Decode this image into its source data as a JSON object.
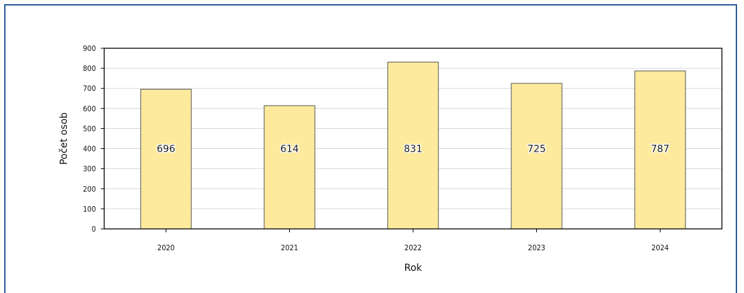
{
  "chart_data": {
    "type": "bar",
    "categories": [
      "2020",
      "2021",
      "2022",
      "2023",
      "2024"
    ],
    "values": [
      696,
      614,
      831,
      725,
      787
    ],
    "title": "",
    "xlabel": "Rok",
    "ylabel": "Počet osob",
    "ylim": [
      0,
      900
    ],
    "yticks": [
      0,
      100,
      200,
      300,
      400,
      500,
      600,
      700,
      800,
      900
    ],
    "grid": "horizontal",
    "legend": "none",
    "colors": {
      "bar_fill": "#fdea9c",
      "bar_stroke": "#555555",
      "grid": "#d9d9d9",
      "axis": "#000000",
      "frame": "#2d5f99"
    }
  }
}
